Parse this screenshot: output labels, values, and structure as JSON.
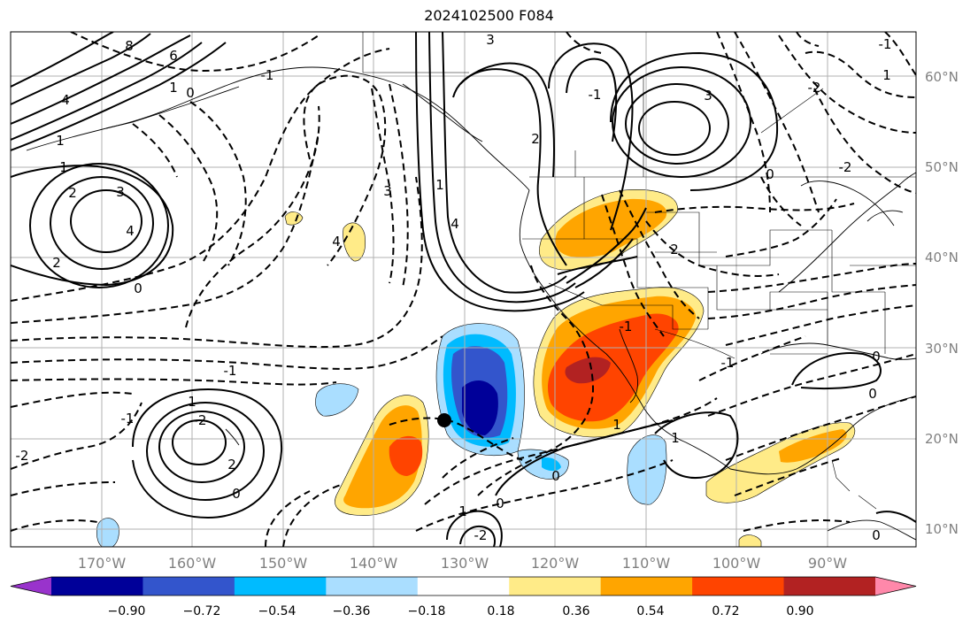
{
  "title": "2024102500 F084",
  "lat_labels": [
    "60°N",
    "50°N",
    "40°N",
    "30°N",
    "20°N",
    "10°N"
  ],
  "lon_labels": [
    "170°W",
    "160°W",
    "150°W",
    "140°W",
    "130°W",
    "120°W",
    "110°W",
    "100°W",
    "90°W"
  ],
  "colorbar": {
    "ticks": [
      "−0.90",
      "−0.72",
      "−0.54",
      "−0.36",
      "−0.18",
      "0.18",
      "0.36",
      "0.54",
      "0.72",
      "0.90"
    ],
    "colors": [
      "#9933cc",
      "#000099",
      "#3355cc",
      "#00bbff",
      "#aadeff",
      "#ffffff",
      "#ffeb88",
      "#ffa500",
      "#ff4400",
      "#b22222",
      "#ff88aa"
    ]
  },
  "contour_labels": [
    "8",
    "6",
    "4",
    "1",
    "0",
    "-1",
    "1",
    "2",
    "3",
    "4",
    "2",
    "0",
    "1",
    "3",
    "4",
    "-1",
    "-2",
    "3",
    "2",
    "1",
    "4",
    "3",
    "-1",
    "2",
    "-1",
    "0",
    "0",
    "1",
    "-2",
    "-1",
    "-2",
    "0",
    "1",
    "0",
    "-1",
    "0",
    "1",
    "-2",
    "-1",
    "0",
    "1",
    "0",
    "2",
    "1",
    "-2"
  ],
  "colors": {
    "frame": "#000000",
    "grid": "#b0b0b0",
    "coast": "#000000",
    "marker": "#000000"
  }
}
